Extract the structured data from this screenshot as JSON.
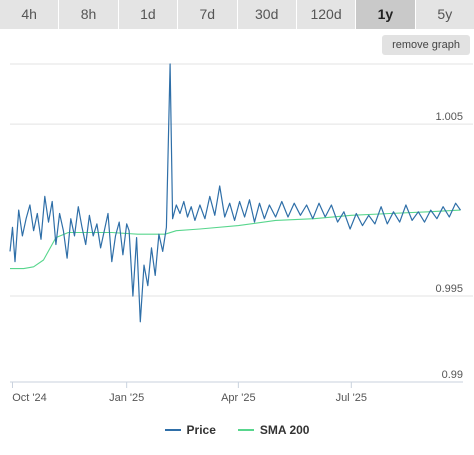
{
  "tabs": [
    {
      "label": "4h",
      "active": false
    },
    {
      "label": "8h",
      "active": false
    },
    {
      "label": "1d",
      "active": false
    },
    {
      "label": "7d",
      "active": false
    },
    {
      "label": "30d",
      "active": false
    },
    {
      "label": "120d",
      "active": false
    },
    {
      "label": "1y",
      "active": true
    },
    {
      "label": "5y",
      "active": false
    }
  ],
  "remove_graph_label": "remove graph",
  "colors": {
    "price": "#2f6fa8",
    "sma": "#58d68d",
    "grid": "#e3e3e3",
    "axis": "#c9d2de"
  },
  "chart_data": {
    "type": "line",
    "title": "",
    "xlabel": "",
    "ylabel": "",
    "ylim": [
      0.99,
      1.0085
    ],
    "yticks": [
      0.99,
      0.995,
      1.005
    ],
    "ytick_labels": [
      "0.99",
      "0.995",
      "1.005"
    ],
    "xlim": [
      "2024-09-29",
      "2025-09-29"
    ],
    "xticks": [
      "2024-10-01",
      "2025-01-01",
      "2025-04-01",
      "2025-07-01"
    ],
    "xtick_labels": [
      "Oct '24",
      "Jan '25",
      "Apr '25",
      "Jul '25"
    ],
    "grid": true,
    "legend_position": "bottom-center",
    "series": [
      {
        "name": "Price",
        "color": "#2f6fa8",
        "x": [
          "2024-09-29",
          "2024-10-01",
          "2024-10-03",
          "2024-10-06",
          "2024-10-09",
          "2024-10-12",
          "2024-10-15",
          "2024-10-18",
          "2024-10-21",
          "2024-10-24",
          "2024-10-27",
          "2024-10-30",
          "2024-11-02",
          "2024-11-05",
          "2024-11-08",
          "2024-11-11",
          "2024-11-14",
          "2024-11-17",
          "2024-11-20",
          "2024-11-23",
          "2024-11-26",
          "2024-11-29",
          "2024-12-02",
          "2024-12-05",
          "2024-12-08",
          "2024-12-11",
          "2024-12-14",
          "2024-12-17",
          "2024-12-20",
          "2024-12-23",
          "2024-12-26",
          "2024-12-29",
          "2025-01-01",
          "2025-01-03",
          "2025-01-06",
          "2025-01-09",
          "2025-01-12",
          "2025-01-15",
          "2025-01-18",
          "2025-01-21",
          "2025-01-24",
          "2025-01-27",
          "2025-01-30",
          "2025-02-02",
          "2025-02-05",
          "2025-02-07",
          "2025-02-10",
          "2025-02-13",
          "2025-02-16",
          "2025-02-19",
          "2025-02-22",
          "2025-02-25",
          "2025-03-01",
          "2025-03-05",
          "2025-03-09",
          "2025-03-13",
          "2025-03-17",
          "2025-03-21",
          "2025-03-25",
          "2025-03-29",
          "2025-04-02",
          "2025-04-06",
          "2025-04-10",
          "2025-04-14",
          "2025-04-18",
          "2025-04-22",
          "2025-04-26",
          "2025-05-01",
          "2025-05-06",
          "2025-05-11",
          "2025-05-16",
          "2025-05-21",
          "2025-05-26",
          "2025-05-31",
          "2025-06-05",
          "2025-06-10",
          "2025-06-15",
          "2025-06-20",
          "2025-06-25",
          "2025-06-30",
          "2025-07-05",
          "2025-07-10",
          "2025-07-15",
          "2025-07-20",
          "2025-07-25",
          "2025-07-30",
          "2025-08-04",
          "2025-08-09",
          "2025-08-14",
          "2025-08-19",
          "2025-08-24",
          "2025-08-29",
          "2025-09-03",
          "2025-09-08",
          "2025-09-13",
          "2025-09-18",
          "2025-09-23",
          "2025-09-27"
        ],
        "values": [
          0.9976,
          0.999,
          0.997,
          1.0,
          0.9985,
          0.9995,
          1.0003,
          0.9988,
          0.9998,
          0.9983,
          1.0008,
          0.9993,
          1.0005,
          0.998,
          0.9998,
          0.9988,
          0.9972,
          0.9995,
          0.9985,
          1.0002,
          0.999,
          0.998,
          0.9997,
          0.9985,
          0.9992,
          0.9978,
          0.9988,
          0.9998,
          0.997,
          0.9985,
          0.9993,
          0.9974,
          0.9992,
          0.9988,
          0.995,
          0.9984,
          0.9935,
          0.9968,
          0.9956,
          0.9978,
          0.9962,
          0.9986,
          0.9976,
          0.999,
          1.0085,
          0.9995,
          1.0003,
          0.9998,
          1.0005,
          0.9996,
          1.0002,
          0.9994,
          1.0003,
          0.9995,
          1.0008,
          0.9997,
          1.0014,
          0.9996,
          1.0004,
          0.9994,
          1.0005,
          0.9996,
          1.0006,
          0.9993,
          1.0004,
          0.9995,
          1.0003,
          0.9996,
          1.0005,
          0.9996,
          1.0004,
          0.9997,
          1.0003,
          0.9995,
          1.0004,
          0.9996,
          1.0003,
          0.9993,
          0.9999,
          0.9989,
          0.9998,
          0.9991,
          0.9997,
          0.9992,
          1.0002,
          0.9992,
          0.9999,
          0.9993,
          1.0003,
          0.9994,
          0.9999,
          0.9993,
          1.0,
          0.9995,
          1.0002,
          0.9996,
          1.0004,
          1.0
        ]
      },
      {
        "name": "SMA 200",
        "color": "#58d68d",
        "x": [
          "2024-09-29",
          "2024-10-10",
          "2024-10-18",
          "2024-10-26",
          "2024-11-05",
          "2024-11-15",
          "2024-12-01",
          "2024-12-20",
          "2025-01-10",
          "2025-02-01",
          "2025-02-10",
          "2025-03-01",
          "2025-04-01",
          "2025-05-01",
          "2025-06-01",
          "2025-07-01",
          "2025-08-01",
          "2025-09-01",
          "2025-09-27"
        ],
        "values": [
          0.9966,
          0.9966,
          0.9967,
          0.9971,
          0.9984,
          0.9987,
          0.9987,
          0.9987,
          0.9986,
          0.9986,
          0.9988,
          0.9989,
          0.9991,
          0.9994,
          0.9995,
          0.9997,
          0.9998,
          0.9999,
          1.0
        ]
      }
    ]
  }
}
